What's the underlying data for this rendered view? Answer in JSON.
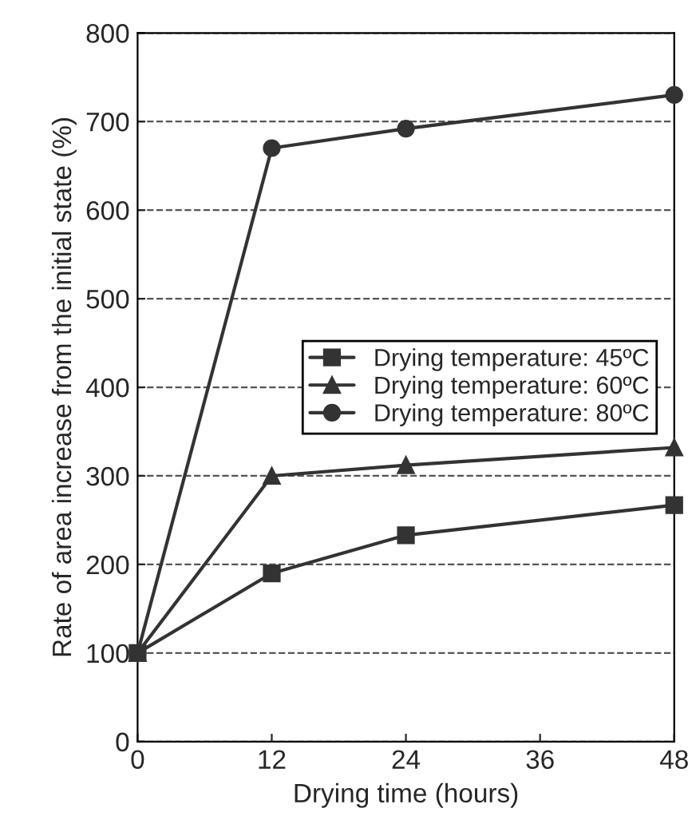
{
  "chart_data": {
    "type": "line",
    "xlabel": "Drying time (hours)",
    "ylabel": "Rate of area increase from the initial state (%)",
    "x": [
      0,
      12,
      24,
      48
    ],
    "xlim": [
      0,
      48
    ],
    "xticks": [
      0,
      12,
      24,
      36,
      48
    ],
    "ylim": [
      0,
      800
    ],
    "yticks": [
      0,
      100,
      200,
      300,
      400,
      500,
      600,
      700,
      800
    ],
    "grid": "y",
    "legend": "right",
    "line_style": "solid",
    "series": [
      {
        "name": "Drying temperature: 45ºC",
        "color": "#333333",
        "marker": "square",
        "values": [
          100,
          190,
          233,
          267
        ]
      },
      {
        "name": "Drying temperature: 60ºC",
        "color": "#333333",
        "marker": "triangle",
        "values": [
          100,
          300,
          312,
          332
        ]
      },
      {
        "name": "Drying temperature: 80ºC",
        "color": "#333333",
        "marker": "circle",
        "values": [
          100,
          670,
          692,
          730
        ]
      }
    ]
  }
}
